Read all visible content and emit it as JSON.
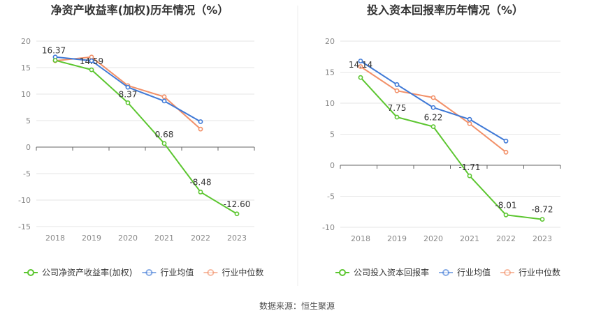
{
  "footer": {
    "source": "数据来源：恒生聚源"
  },
  "colors": {
    "company": "#5cc630",
    "avg": "#3f79d6",
    "median": "#f29068",
    "grid": "#e6e6e6",
    "axis": "#666666",
    "tick": "#888888",
    "label": "#333333",
    "divider": "#eeeeee"
  },
  "chart_data": [
    {
      "type": "line",
      "title": "净资产收益率(加权)历年情况（%）",
      "categories": [
        "2018",
        "2019",
        "2020",
        "2021",
        "2022",
        "2023"
      ],
      "ylim": [
        -15,
        20
      ],
      "yticks": [
        20,
        15,
        10,
        5,
        0,
        -5,
        -10,
        -15
      ],
      "grid": true,
      "legend": "bottom",
      "series": [
        {
          "name": "公司净资产收益率(加权)",
          "key": "company",
          "values": [
            16.37,
            14.59,
            8.37,
            0.68,
            -8.48,
            -12.6
          ],
          "labels": [
            "16.37",
            "14.59",
            "8.37",
            "0.68",
            "-8.48",
            "-12.60"
          ]
        },
        {
          "name": "行业均值",
          "key": "avg",
          "values": [
            17.0,
            16.3,
            11.3,
            8.7,
            4.8,
            null
          ]
        },
        {
          "name": "行业中位数",
          "key": "median",
          "values": [
            16.3,
            17.0,
            11.6,
            9.5,
            3.4,
            null
          ]
        }
      ]
    },
    {
      "type": "line",
      "title": "投入资本回报率历年情况（%）",
      "categories": [
        "2018",
        "2019",
        "2020",
        "2021",
        "2022",
        "2023"
      ],
      "ylim": [
        -10,
        20
      ],
      "yticks": [
        20,
        15,
        10,
        5,
        0,
        -5,
        -10
      ],
      "grid": true,
      "legend": "bottom",
      "series": [
        {
          "name": "公司投入资本回报率",
          "key": "company",
          "values": [
            14.14,
            7.75,
            6.22,
            -1.71,
            -8.01,
            -8.72
          ],
          "labels": [
            "14.14",
            "7.75",
            "6.22",
            "-1.71",
            "-8.01",
            "-8.72"
          ]
        },
        {
          "name": "行业均值",
          "key": "avg",
          "values": [
            16.8,
            13.0,
            9.3,
            7.4,
            3.9,
            null
          ]
        },
        {
          "name": "行业中位数",
          "key": "median",
          "values": [
            15.9,
            12.0,
            10.9,
            6.7,
            2.1,
            null
          ]
        }
      ]
    }
  ]
}
